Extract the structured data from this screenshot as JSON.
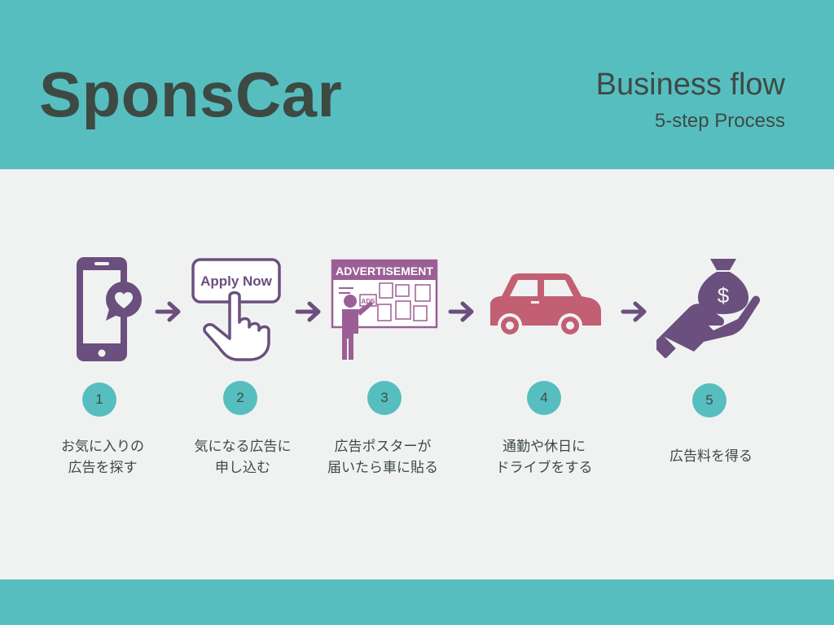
{
  "header": {
    "brand": "SponsCar",
    "title": "Business flow",
    "subtitle": "5-step Process"
  },
  "steps": [
    {
      "number": "1",
      "icon": "phone-heart-icon",
      "text": "お気に入りの\n広告を探す"
    },
    {
      "number": "2",
      "icon": "apply-now-hand-icon",
      "text": "気になる広告に\n申し込む",
      "button_text": "Apply Now"
    },
    {
      "number": "3",
      "icon": "advertisement-board-icon",
      "text": "広告ポスターが\n届いたら車に貼る",
      "board_title": "ADVERTISEMENT",
      "ads_label": "ADS"
    },
    {
      "number": "4",
      "icon": "car-icon",
      "text": "通勤や休日に\nドライブをする"
    },
    {
      "number": "5",
      "icon": "money-bag-hand-icon",
      "text": "広告料を得る",
      "currency": "$"
    }
  ],
  "colors": {
    "teal": "#57bec0",
    "dark": "#3d4a44",
    "purple": "#6b4f7e",
    "car": "#c25f73",
    "background": "#f0f2f2"
  }
}
